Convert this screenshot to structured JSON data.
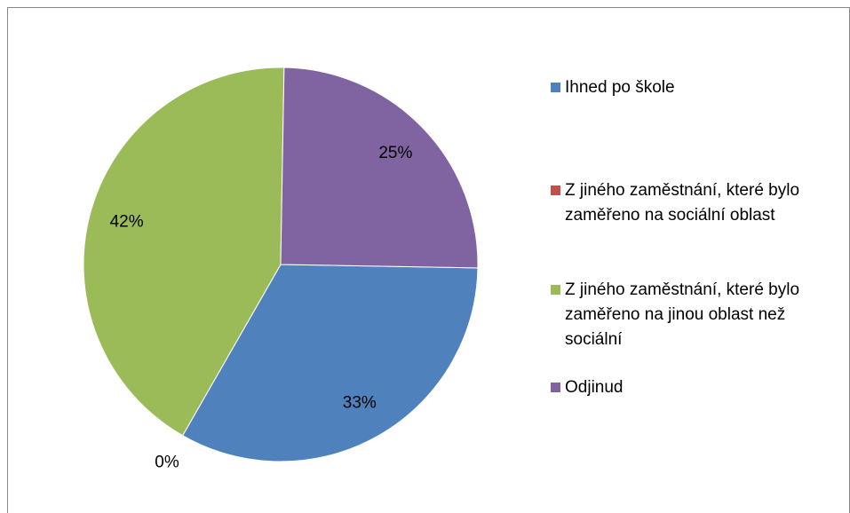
{
  "chart_data": {
    "type": "pie",
    "categories": [
      "Ihned po škole",
      "Z jiného zaměstnání, které bylo zaměřeno na sociální oblast",
      "Z jiného zaměstnání, které bylo zaměřeno na jinou oblast než sociální",
      "Odjinud"
    ],
    "values": [
      33,
      0,
      42,
      25
    ],
    "value_labels": [
      "33%",
      "0%",
      "42%",
      "25%"
    ],
    "colors": [
      "#4f81bd",
      "#c0504d",
      "#9bbb59",
      "#8064a2"
    ],
    "legend": "right"
  }
}
